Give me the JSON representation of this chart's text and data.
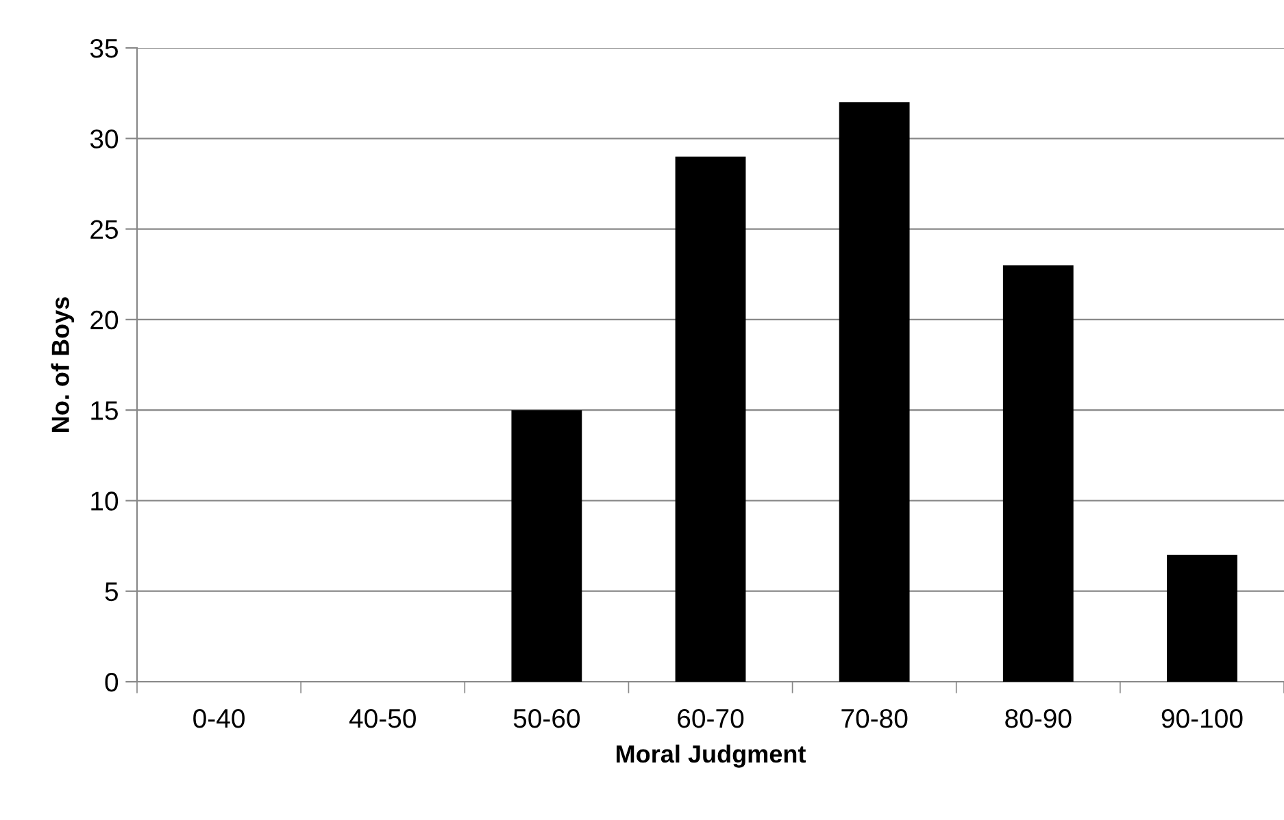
{
  "chart_data": {
    "type": "bar",
    "xlabel": "Moral Judgment",
    "ylabel": "No. of Boys",
    "categories": [
      "0-40",
      "40-50",
      "50-60",
      "60-70",
      "70-80",
      "80-90",
      "90-100"
    ],
    "values": [
      0,
      0,
      15,
      29,
      32,
      23,
      7
    ],
    "color": "#000000",
    "ylim": [
      0,
      35
    ],
    "yticks": [
      0,
      5,
      10,
      15,
      20,
      25,
      30,
      35
    ],
    "grid": "y",
    "legend": false
  }
}
